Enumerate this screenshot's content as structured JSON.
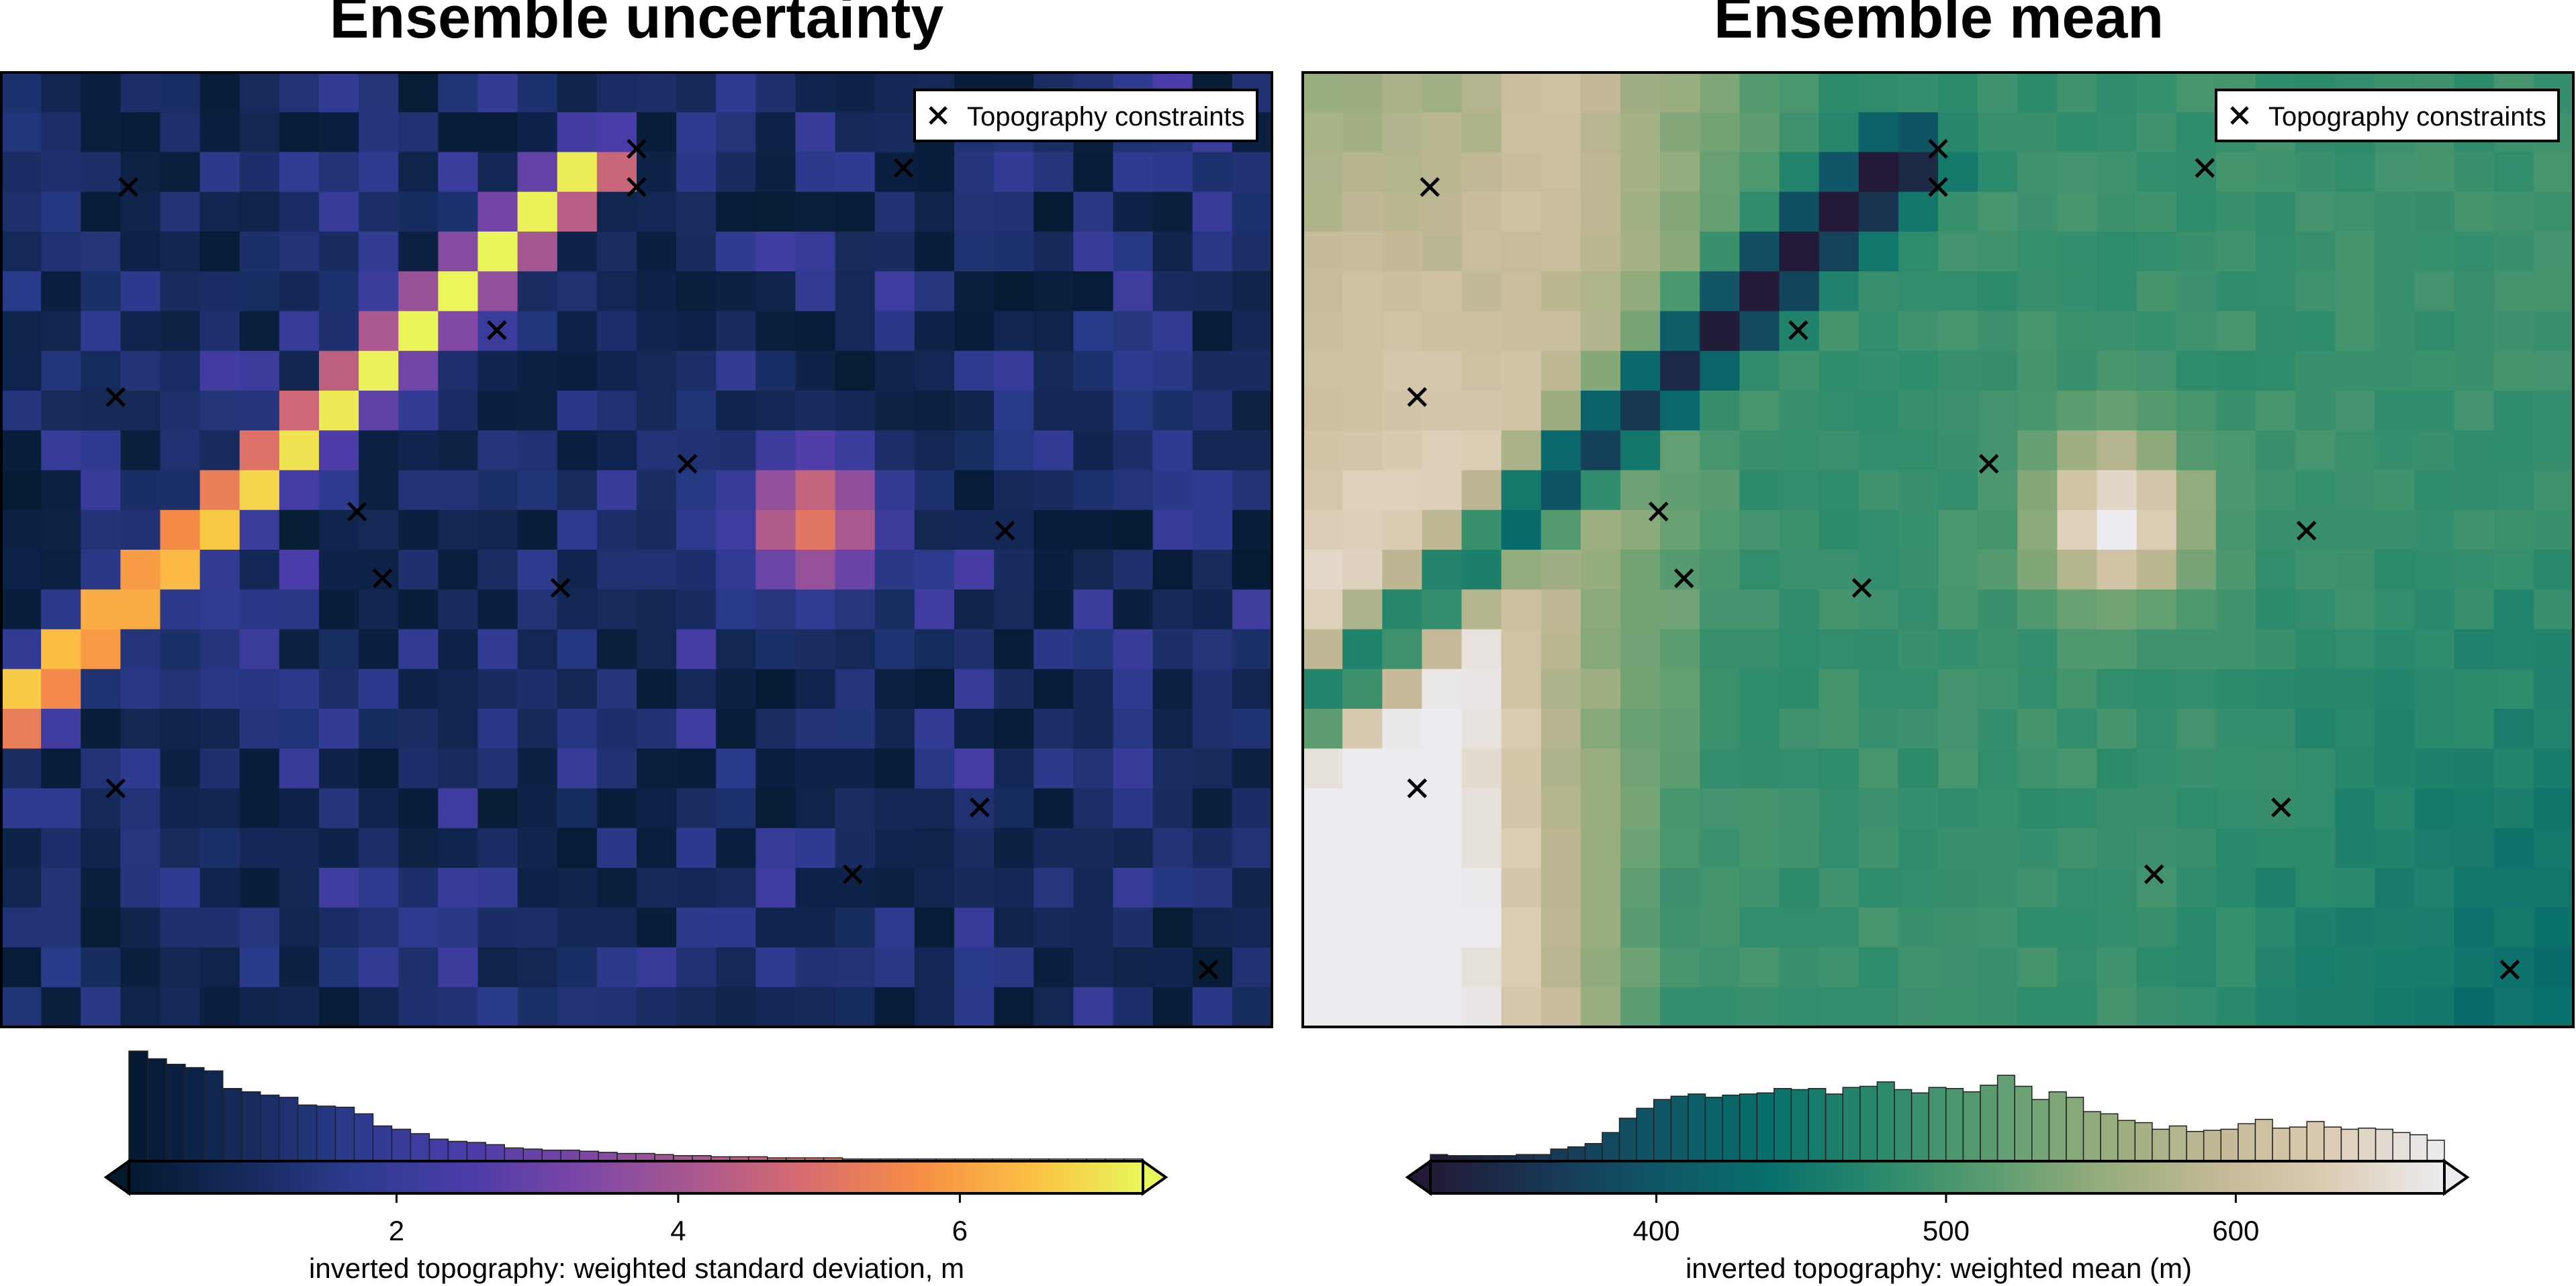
{
  "chart_data": [
    {
      "type": "heatmap",
      "title": "Ensemble uncertainty",
      "colormap": "thermal",
      "grid": {
        "cols": 32,
        "rows": 24
      },
      "features": {
        "ridge": {
          "from": [
            0.0,
            0.68
          ],
          "to": [
            0.47,
            0.09
          ],
          "width": 0.03,
          "peak": 7.3
        },
        "bump": {
          "center": [
            0.64,
            0.47
          ],
          "radius": 0.09,
          "peak": 5.2
        },
        "background": [
          0.2,
          2.6
        ]
      },
      "legend": {
        "label": "Topography constraints",
        "placement": "top-right",
        "marker": "x"
      },
      "colorbar": {
        "label": "inverted topography: weighted standard deviation, m",
        "range": [
          0.1,
          7.3
        ],
        "ticks": [
          "2",
          "4",
          "6"
        ],
        "tick_values": [
          2,
          4,
          6
        ],
        "extend": "both",
        "stops": [
          "#04192e",
          "#152a5a",
          "#2c3b8e",
          "#4a3ca8",
          "#7a47a6",
          "#a9588f",
          "#d86c70",
          "#f68d45",
          "#fbc043",
          "#e9f75a"
        ],
        "histogram": [
          1.0,
          0.93,
          0.88,
          0.85,
          0.82,
          0.66,
          0.63,
          0.6,
          0.58,
          0.51,
          0.5,
          0.49,
          0.43,
          0.32,
          0.29,
          0.25,
          0.2,
          0.18,
          0.17,
          0.15,
          0.12,
          0.11,
          0.1,
          0.1,
          0.09,
          0.08,
          0.07,
          0.07,
          0.06,
          0.05,
          0.05,
          0.04,
          0.04,
          0.04,
          0.03,
          0.03,
          0.03,
          0.03,
          0.02,
          0.02,
          0.02,
          0.02,
          0.02,
          0.02,
          0.02,
          0.02,
          0.02,
          0.02,
          0.02,
          0.02,
          0.02,
          0.02,
          0.02,
          0.02
        ]
      }
    },
    {
      "type": "heatmap",
      "title": "Ensemble mean",
      "colormap": "rain/earth",
      "grid": {
        "cols": 32,
        "rows": 24
      },
      "legend": {
        "label": "Topography constraints",
        "placement": "top-right",
        "marker": "x"
      },
      "colorbar": {
        "label": "inverted topography: weighted mean (m)",
        "range": [
          322,
          672
        ],
        "ticks": [
          "400",
          "500",
          "600"
        ],
        "tick_values": [
          400,
          500,
          600
        ],
        "extend": "both",
        "stops": [
          "#221a36",
          "#183653",
          "#0f5666",
          "#086f6b",
          "#2a8a6c",
          "#5c9d70",
          "#98ad7e",
          "#c3b996",
          "#dccdb5",
          "#ececf0"
        ],
        "histogram": [
          0.06,
          0.05,
          0.05,
          0.05,
          0.05,
          0.06,
          0.06,
          0.11,
          0.13,
          0.16,
          0.26,
          0.39,
          0.48,
          0.56,
          0.59,
          0.61,
          0.58,
          0.6,
          0.61,
          0.62,
          0.66,
          0.65,
          0.66,
          0.61,
          0.67,
          0.68,
          0.72,
          0.65,
          0.62,
          0.67,
          0.66,
          0.63,
          0.69,
          0.78,
          0.68,
          0.56,
          0.63,
          0.58,
          0.45,
          0.43,
          0.37,
          0.35,
          0.29,
          0.32,
          0.27,
          0.28,
          0.29,
          0.34,
          0.38,
          0.3,
          0.31,
          0.36,
          0.31,
          0.29,
          0.3,
          0.29,
          0.26,
          0.24,
          0.19
        ]
      }
    }
  ],
  "constraints": [
    [
      0.1,
      0.12
    ],
    [
      0.5,
      0.08
    ],
    [
      0.5,
      0.12
    ],
    [
      0.71,
      0.1
    ],
    [
      0.39,
      0.27
    ],
    [
      0.09,
      0.34
    ],
    [
      0.54,
      0.41
    ],
    [
      0.28,
      0.46
    ],
    [
      0.79,
      0.48
    ],
    [
      0.3,
      0.53
    ],
    [
      0.44,
      0.54
    ],
    [
      0.09,
      0.75
    ],
    [
      0.77,
      0.77
    ],
    [
      0.67,
      0.84
    ],
    [
      0.95,
      0.94
    ]
  ]
}
